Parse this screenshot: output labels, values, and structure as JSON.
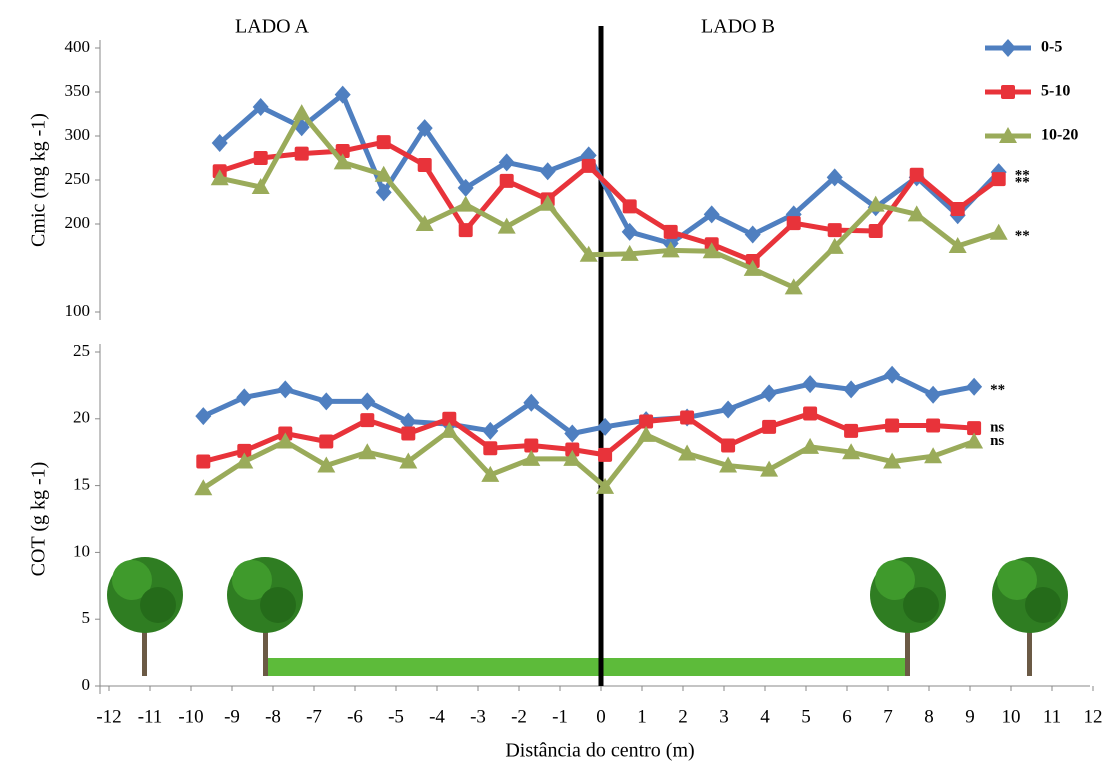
{
  "chart_data": {
    "type": "line",
    "xlabel": "Distância do centro (m)",
    "side_labels": [
      "LADO A",
      "LADO B"
    ],
    "xlim": [
      -12,
      12
    ],
    "xticks": [
      -12,
      -11,
      -10,
      -9,
      -8,
      -7,
      -6,
      -5,
      -4,
      -3,
      -2,
      -1,
      0,
      1,
      2,
      3,
      4,
      5,
      6,
      7,
      8,
      9,
      10,
      11,
      12
    ],
    "panels": [
      {
        "ylabel": "Cmic (mg kg -1)",
        "ylim": [
          100,
          400
        ],
        "yticks": [
          100,
          200,
          250,
          300,
          350,
          400
        ],
        "legend": "upper right",
        "x": [
          -9.3,
          -8.3,
          -7.3,
          -6.3,
          -5.3,
          -4.3,
          -3.3,
          -2.3,
          -1.3,
          -0.3,
          0.7,
          1.7,
          2.7,
          3.7,
          4.7,
          5.7,
          6.7,
          7.7,
          8.7,
          9.7
        ],
        "series": [
          {
            "name": "0-5",
            "color": "#4f7fc0",
            "marker": "diamond",
            "note": "**",
            "values": [
              292,
              333,
              310,
              347,
              236,
              309,
              241,
              270,
              260,
              278,
              191,
              178,
              211,
              188,
              211,
              253,
              219,
              253,
              210,
              259
            ]
          },
          {
            "name": "5-10",
            "color": "#e8333a",
            "marker": "square",
            "note": "**",
            "values": [
              260,
              275,
              280,
              283,
              293,
              267,
              193,
              249,
              228,
              266,
              220,
              191,
              177,
              158,
              201,
              193,
              192,
              256,
              217,
              251
            ]
          },
          {
            "name": "10-20",
            "color": "#9aab5a",
            "marker": "triangle",
            "note": "**",
            "values": [
              252,
              242,
              326,
              270,
              256,
              200,
              222,
              197,
              223,
              165,
              166,
              170,
              169,
              149,
              128,
              174,
              222,
              211,
              175,
              190
            ]
          }
        ]
      },
      {
        "ylabel": "COT (g kg -1)",
        "ylim": [
          0,
          25
        ],
        "yticks": [
          0,
          5,
          10,
          15,
          20,
          25
        ],
        "x": [
          -9.7,
          -8.7,
          -7.7,
          -6.7,
          -5.7,
          -4.7,
          -3.7,
          -2.7,
          -1.7,
          -0.7,
          0.1,
          1.1,
          2.1,
          3.1,
          4.1,
          5.1,
          6.1,
          7.1,
          8.1,
          9.1
        ],
        "series": [
          {
            "color": "#4f7fc0",
            "marker": "diamond",
            "note": "**",
            "values": [
              20.2,
              21.6,
              22.2,
              21.3,
              21.3,
              19.8,
              19.6,
              19.1,
              21.2,
              18.9,
              19.4,
              19.9,
              20.1,
              20.7,
              21.9,
              22.6,
              22.2,
              23.3,
              21.8,
              22.4
            ]
          },
          {
            "color": "#e8333a",
            "marker": "square",
            "note": "ns",
            "values": [
              16.8,
              17.6,
              18.9,
              18.3,
              19.9,
              18.9,
              20.0,
              17.8,
              18.0,
              17.7,
              17.3,
              19.8,
              20.1,
              18.0,
              19.4,
              20.4,
              19.1,
              19.5,
              19.5,
              19.3
            ]
          },
          {
            "color": "#9aab5a",
            "marker": "triangle",
            "note": "ns",
            "values": [
              14.8,
              16.8,
              18.3,
              16.5,
              17.5,
              16.8,
              19.1,
              15.8,
              17.0,
              17.0,
              14.9,
              18.8,
              17.4,
              16.5,
              16.2,
              17.9,
              17.5,
              16.8,
              17.2,
              18.3
            ]
          }
        ]
      }
    ]
  }
}
